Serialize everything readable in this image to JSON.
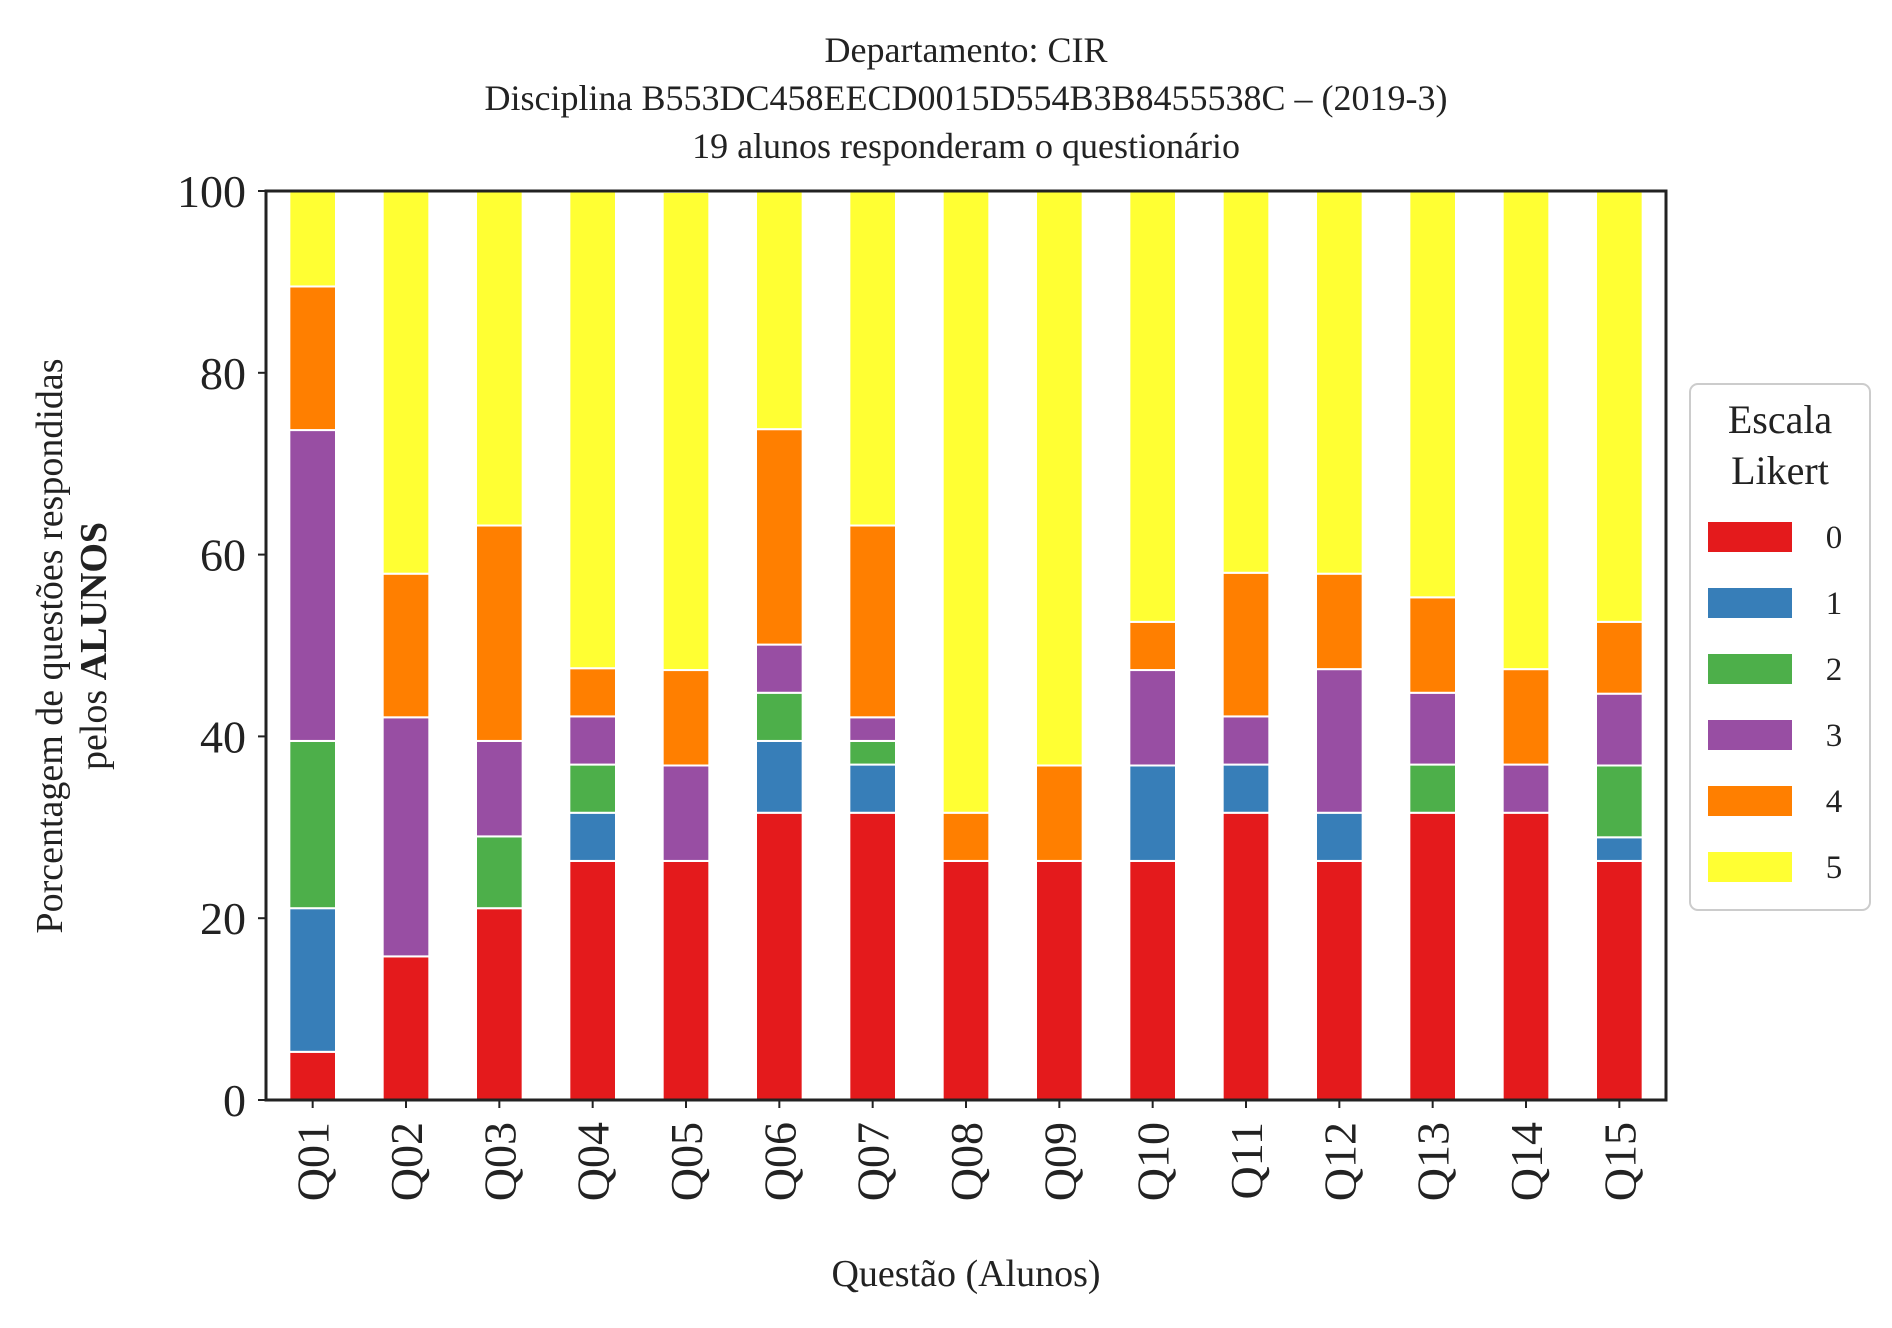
{
  "chart_data": {
    "type": "bar",
    "stacked": true,
    "title_lines": [
      "Departamento: CIR",
      "Disciplina B553DC458EECD0015D554B3B8455538C – (2019-3)",
      "19 alunos responderam o questionário"
    ],
    "xlabel": "Questão (Alunos)",
    "ylabel_line1": "Porcentagem de questões respondidas",
    "ylabel_line2_prefix": "pelos ",
    "ylabel_line2_bold": "ALUNOS",
    "ylim": [
      0,
      100
    ],
    "yticks": [
      0,
      20,
      40,
      60,
      80,
      100
    ],
    "grid": false,
    "legend": {
      "title_lines": [
        "Escala",
        "Likert"
      ],
      "placement": "right"
    },
    "categories": [
      "Q01",
      "Q02",
      "Q03",
      "Q04",
      "Q05",
      "Q06",
      "Q07",
      "Q08",
      "Q09",
      "Q10",
      "Q11",
      "Q12",
      "Q13",
      "Q14",
      "Q15"
    ],
    "series": [
      {
        "name": "0",
        "color": "#e41a1c",
        "values": [
          5.3,
          15.8,
          21.1,
          26.3,
          26.3,
          31.6,
          31.6,
          26.3,
          26.3,
          26.3,
          31.6,
          26.3,
          31.6,
          31.6,
          26.3
        ]
      },
      {
        "name": "1",
        "color": "#377eb8",
        "values": [
          15.8,
          0,
          0,
          5.3,
          0,
          7.9,
          5.3,
          0,
          0,
          10.5,
          5.3,
          5.3,
          0,
          0,
          2.6
        ]
      },
      {
        "name": "2",
        "color": "#4daf4a",
        "values": [
          18.4,
          0,
          7.9,
          5.3,
          0,
          5.3,
          2.6,
          0,
          0,
          0,
          0,
          0,
          5.3,
          0,
          7.9
        ]
      },
      {
        "name": "3",
        "color": "#984ea3",
        "values": [
          34.2,
          26.3,
          10.5,
          5.3,
          10.5,
          5.3,
          2.6,
          0,
          0,
          10.5,
          5.3,
          15.8,
          7.9,
          5.3,
          7.9
        ]
      },
      {
        "name": "4",
        "color": "#ff7f00",
        "values": [
          15.8,
          15.8,
          23.7,
          5.3,
          10.5,
          23.7,
          21.1,
          5.3,
          10.5,
          5.3,
          15.8,
          10.5,
          10.5,
          10.5,
          7.9
        ]
      },
      {
        "name": "5",
        "color": "#ffff33",
        "values": [
          10.5,
          42.1,
          36.8,
          52.6,
          52.6,
          26.3,
          36.8,
          68.4,
          63.2,
          47.4,
          42.1,
          42.1,
          44.7,
          52.6,
          47.4
        ]
      }
    ]
  }
}
